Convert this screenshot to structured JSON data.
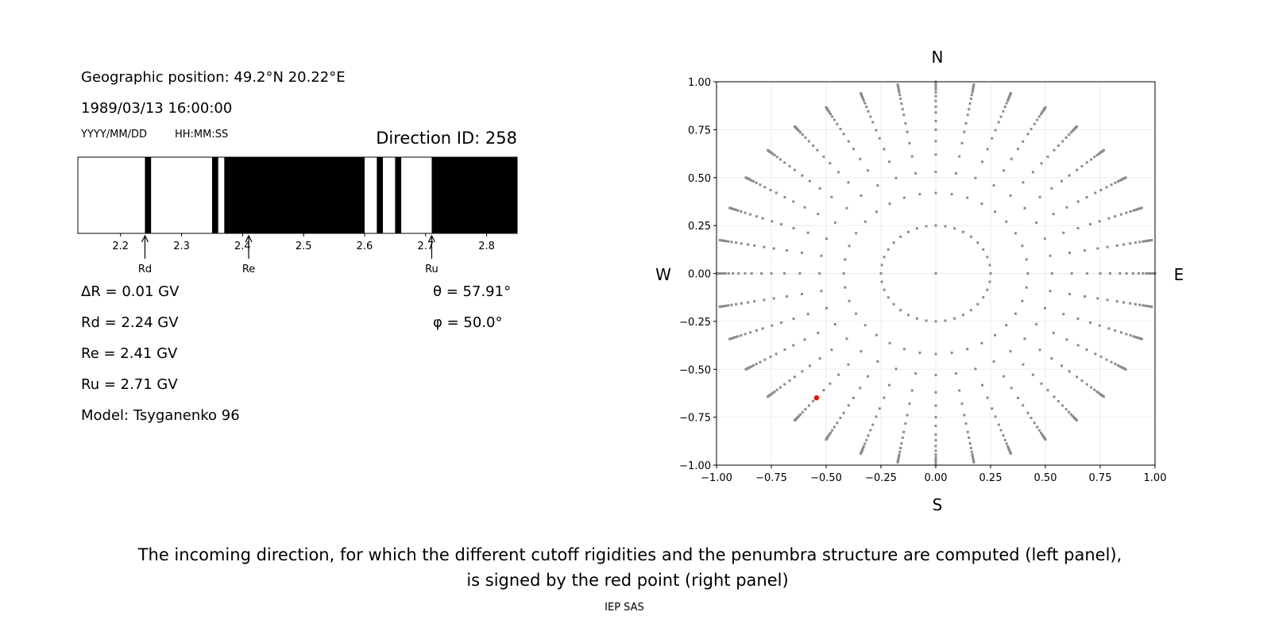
{
  "header": {
    "geo_position": "Geographic position: 49.2°N 20.22°E",
    "datetime": "1989/03/13 16:00:00",
    "date_format": "YYYY/MM/DD",
    "time_format": "HH:MM:SS",
    "direction_id": "Direction ID: 258"
  },
  "results": {
    "delta_r": "ΔR = 0.01 GV",
    "rd": "Rd = 2.24 GV",
    "re": "Re = 2.41 GV",
    "ru": "Ru = 2.71 GV",
    "model": "Model: Tsyganenko 96",
    "theta": "θ = 57.91°",
    "phi": "φ = 50.0°"
  },
  "compass": {
    "north": "N",
    "south": "S",
    "west": "W",
    "east": "E"
  },
  "caption": {
    "line1": "The incoming direction, for which the different cutoff rigidities and the penumbra structure are computed (left panel),",
    "line2": "is signed by the red point (right panel)",
    "credit": "IEP SAS"
  },
  "chart_data": [
    {
      "type": "bar",
      "subtype": "penumbra-bands",
      "xlim": [
        2.13,
        2.85
      ],
      "xticks": [
        2.2,
        2.3,
        2.4,
        2.5,
        2.6,
        2.7,
        2.8
      ],
      "xtick_labels": [
        "2.2",
        "2.3",
        "2.4",
        "2.5",
        "2.6",
        "2.7",
        "2.8"
      ],
      "forbidden_bands": [
        [
          2.24,
          2.25
        ],
        [
          2.35,
          2.36
        ],
        [
          2.37,
          2.6
        ],
        [
          2.62,
          2.63
        ],
        [
          2.65,
          2.66
        ],
        [
          2.71,
          2.85
        ]
      ],
      "colors": {
        "allowed": "#ffffff",
        "forbidden": "#000000"
      },
      "markers": [
        {
          "label": "Rd",
          "value": 2.24
        },
        {
          "label": "Re",
          "value": 2.41
        },
        {
          "label": "Ru",
          "value": 2.71
        }
      ]
    },
    {
      "type": "scatter",
      "xlim": [
        -1.0,
        1.0
      ],
      "ylim": [
        -1.0,
        1.0
      ],
      "grid": true,
      "ticks": [
        -1.0,
        -0.75,
        -0.5,
        -0.25,
        0.0,
        0.25,
        0.5,
        0.75,
        1.0
      ],
      "tick_labels": [
        "−1.00",
        "−0.75",
        "−0.50",
        "−0.25",
        "0.00",
        "0.25",
        "0.50",
        "0.75",
        "1.00"
      ],
      "grid_directions": {
        "azimuth_step_deg": 10,
        "radii": [
          0.25,
          0.42,
          0.53,
          0.62,
          0.69,
          0.75,
          0.795,
          0.84,
          0.87,
          0.9,
          0.925,
          0.945,
          0.96,
          0.97,
          0.978,
          0.985,
          0.99,
          0.995,
          1.0
        ],
        "center_point": [
          0.0,
          0.0
        ],
        "color": "#8c8c8c"
      },
      "highlight_point": {
        "x": -0.544,
        "y": -0.649,
        "color": "#ff0000"
      }
    }
  ]
}
